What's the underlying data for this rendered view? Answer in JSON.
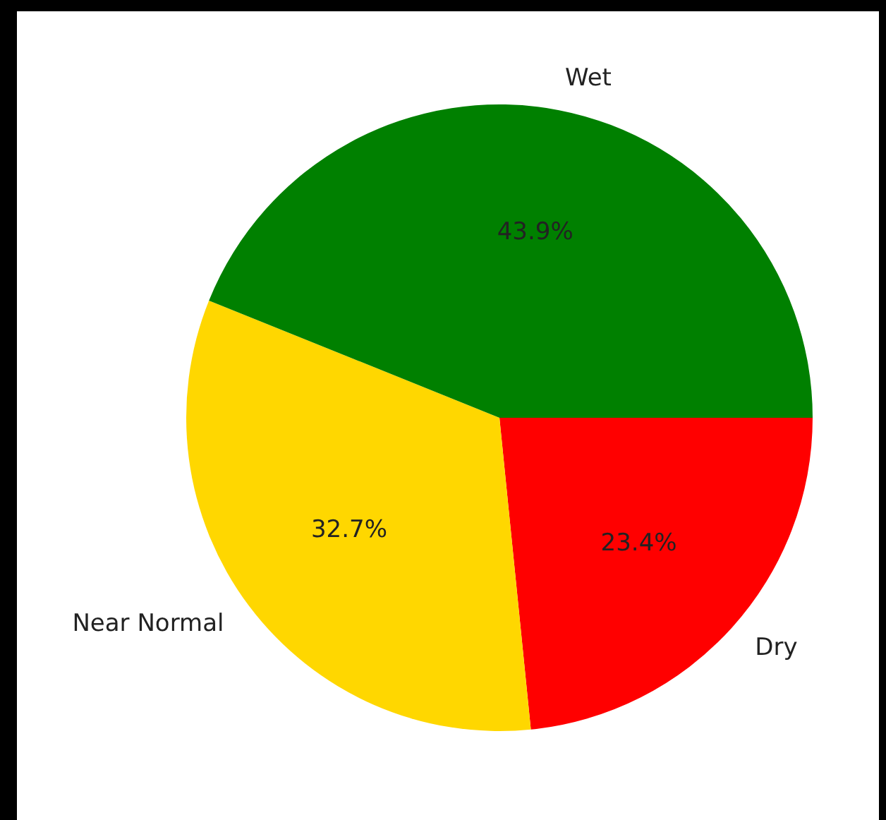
{
  "chart_data": {
    "type": "pie",
    "categories": [
      "Wet",
      "Near Normal",
      "Dry"
    ],
    "values": [
      43.9,
      32.7,
      23.4
    ],
    "colors": [
      "#008000",
      "#ffd700",
      "#ff0000"
    ],
    "value_labels": [
      "43.9%",
      "32.7%",
      "23.4%"
    ],
    "legend": false
  }
}
